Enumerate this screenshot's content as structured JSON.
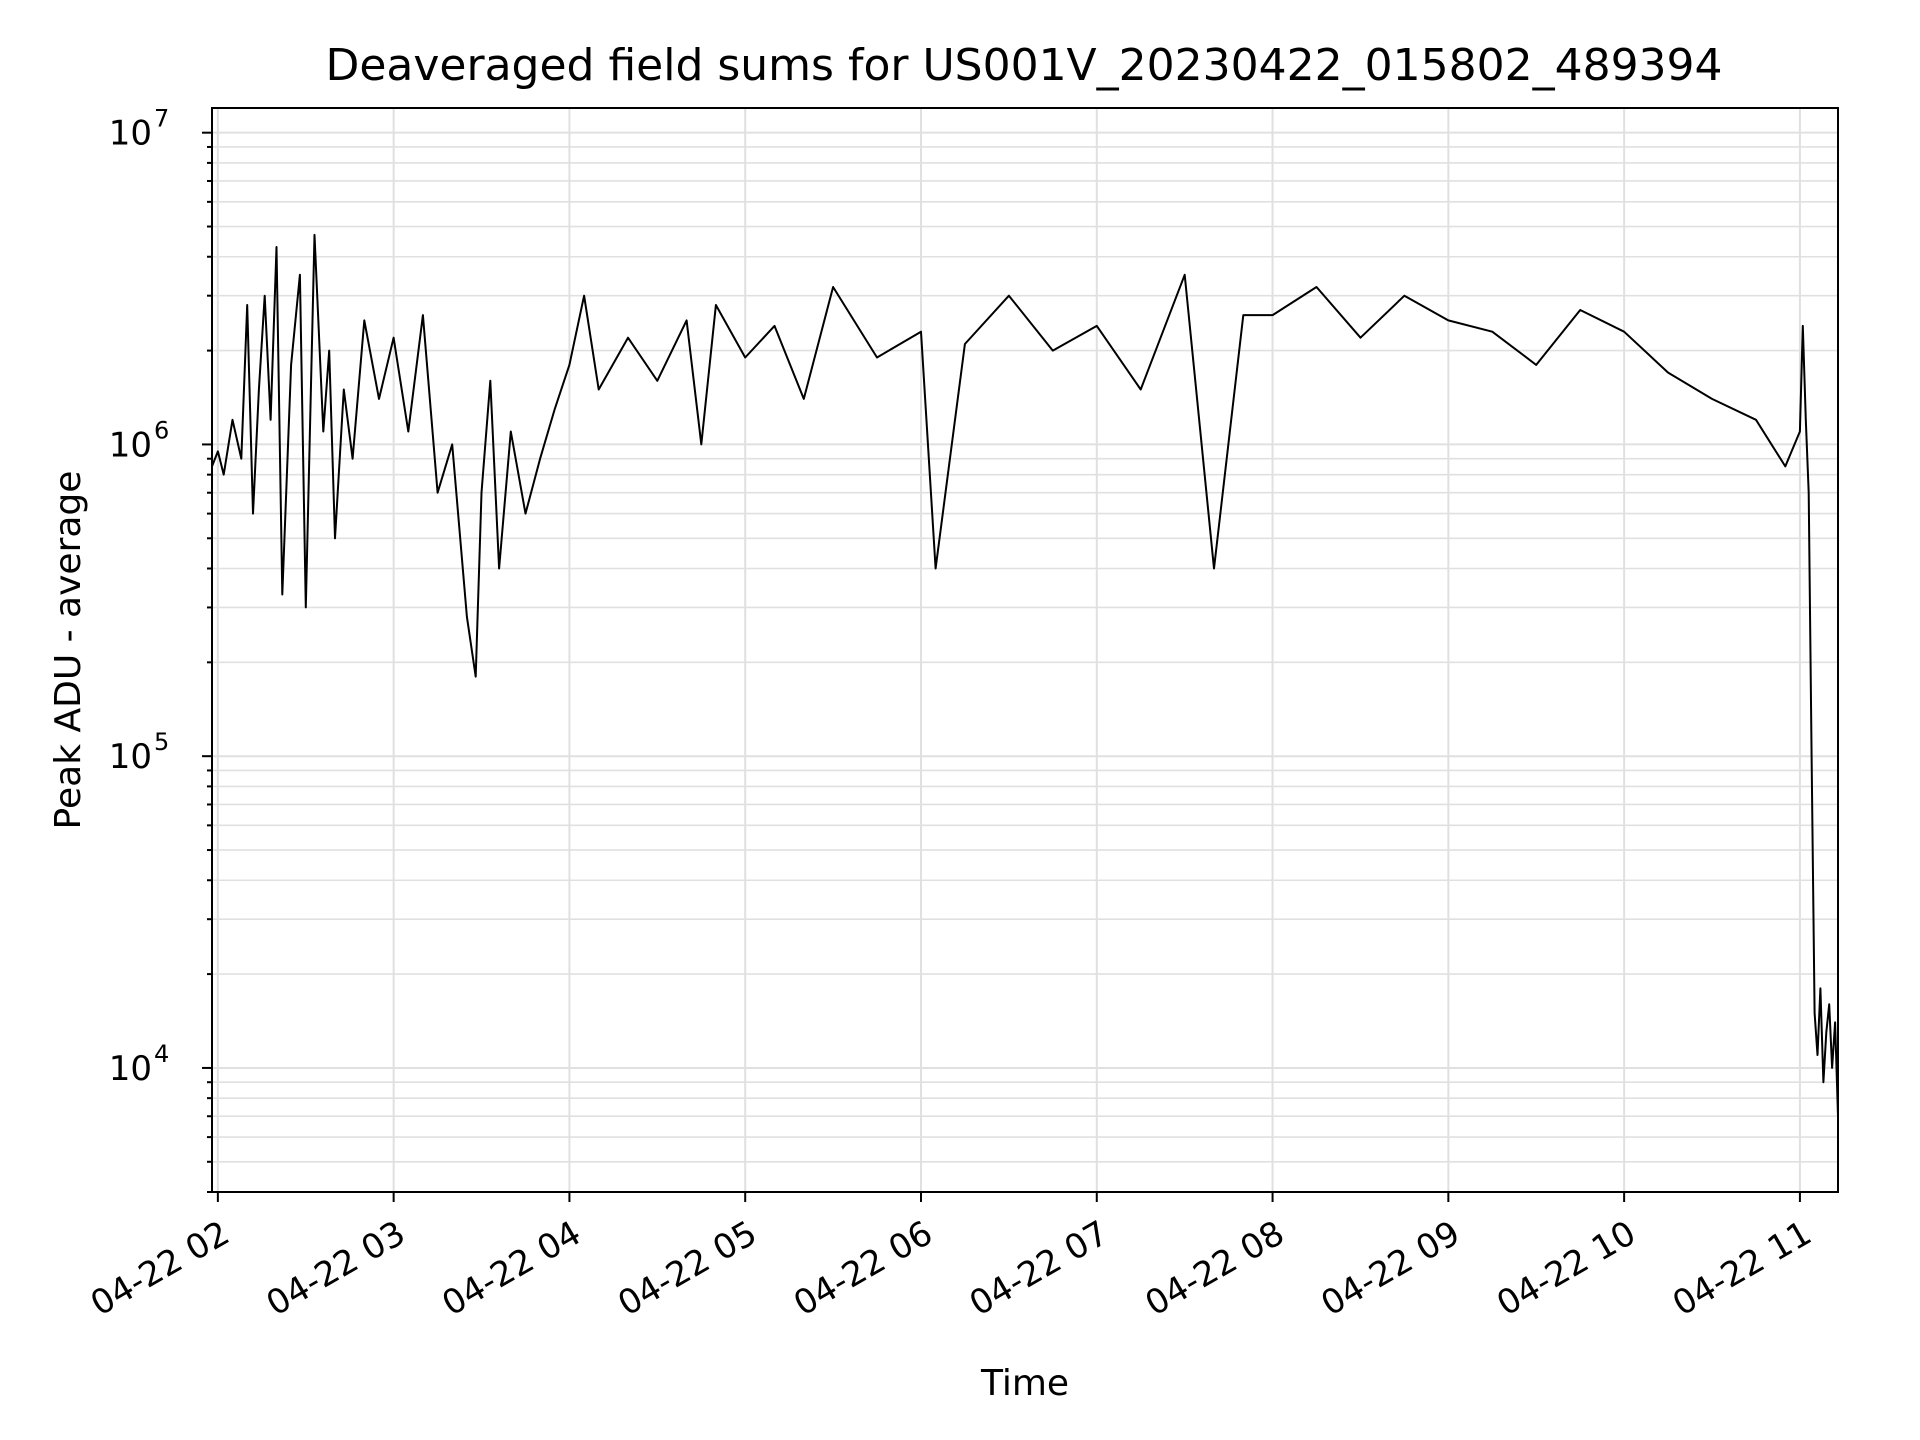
{
  "chart_data": {
    "type": "line",
    "title": "Deaveraged field sums for US001V_20230422_015802_489394",
    "xlabel": "Time",
    "ylabel": "Peak ADU - average",
    "y_scale": "log",
    "ylim": [
      4000,
      12000000
    ],
    "xlim": [
      "2023-04-22 01:58",
      "2023-04-22 11:13"
    ],
    "x_ticks": [
      "04-22 02",
      "04-22 03",
      "04-22 04",
      "04-22 05",
      "04-22 06",
      "04-22 07",
      "04-22 08",
      "04-22 09",
      "04-22 10",
      "04-22 11"
    ],
    "x_tick_times": [
      "2023-04-22 02:00",
      "2023-04-22 03:00",
      "2023-04-22 04:00",
      "2023-04-22 05:00",
      "2023-04-22 06:00",
      "2023-04-22 07:00",
      "2023-04-22 08:00",
      "2023-04-22 09:00",
      "2023-04-22 10:00",
      "2023-04-22 11:00"
    ],
    "y_ticks": [
      {
        "value": 10000,
        "base": "10",
        "exp": "4"
      },
      {
        "value": 100000,
        "base": "10",
        "exp": "5"
      },
      {
        "value": 1000000,
        "base": "10",
        "exp": "6"
      },
      {
        "value": 10000000,
        "base": "10",
        "exp": "7"
      }
    ],
    "grid": true,
    "line_color": "#000000",
    "grid_color": "#e0e0e0",
    "series": [
      {
        "x": [
          "2023-04-22 01:58",
          "2023-04-22 02:00",
          "2023-04-22 02:02",
          "2023-04-22 02:05",
          "2023-04-22 02:08",
          "2023-04-22 02:10",
          "2023-04-22 02:12",
          "2023-04-22 02:14",
          "2023-04-22 02:16",
          "2023-04-22 02:18",
          "2023-04-22 02:20",
          "2023-04-22 02:22",
          "2023-04-22 02:25",
          "2023-04-22 02:28",
          "2023-04-22 02:30",
          "2023-04-22 02:33",
          "2023-04-22 02:36",
          "2023-04-22 02:38",
          "2023-04-22 02:40",
          "2023-04-22 02:43",
          "2023-04-22 02:46",
          "2023-04-22 02:50",
          "2023-04-22 02:55",
          "2023-04-22 03:00",
          "2023-04-22 03:05",
          "2023-04-22 03:10",
          "2023-04-22 03:15",
          "2023-04-22 03:20",
          "2023-04-22 03:25",
          "2023-04-22 03:28",
          "2023-04-22 03:30",
          "2023-04-22 03:33",
          "2023-04-22 03:36",
          "2023-04-22 03:40",
          "2023-04-22 03:45",
          "2023-04-22 03:50",
          "2023-04-22 03:55",
          "2023-04-22 04:00",
          "2023-04-22 04:05",
          "2023-04-22 04:10",
          "2023-04-22 04:20",
          "2023-04-22 04:30",
          "2023-04-22 04:40",
          "2023-04-22 04:45",
          "2023-04-22 04:50",
          "2023-04-22 05:00",
          "2023-04-22 05:10",
          "2023-04-22 05:20",
          "2023-04-22 05:30",
          "2023-04-22 05:45",
          "2023-04-22 06:00",
          "2023-04-22 06:05",
          "2023-04-22 06:15",
          "2023-04-22 06:30",
          "2023-04-22 06:45",
          "2023-04-22 07:00",
          "2023-04-22 07:15",
          "2023-04-22 07:30",
          "2023-04-22 07:40",
          "2023-04-22 07:50",
          "2023-04-22 08:00",
          "2023-04-22 08:15",
          "2023-04-22 08:30",
          "2023-04-22 08:45",
          "2023-04-22 09:00",
          "2023-04-22 09:15",
          "2023-04-22 09:30",
          "2023-04-22 09:45",
          "2023-04-22 10:00",
          "2023-04-22 10:15",
          "2023-04-22 10:30",
          "2023-04-22 10:45",
          "2023-04-22 10:55",
          "2023-04-22 11:00",
          "2023-04-22 11:01",
          "2023-04-22 11:02",
          "2023-04-22 11:03",
          "2023-04-22 11:04",
          "2023-04-22 11:05",
          "2023-04-22 11:06",
          "2023-04-22 11:07",
          "2023-04-22 11:08",
          "2023-04-22 11:09",
          "2023-04-22 11:10",
          "2023-04-22 11:11",
          "2023-04-22 11:12",
          "2023-04-22 11:13"
        ],
        "y": [
          850000,
          950000,
          800000,
          1200000,
          900000,
          2800000,
          600000,
          1500000,
          3000000,
          1200000,
          4300000,
          330000,
          1800000,
          3500000,
          300000,
          4700000,
          1100000,
          2000000,
          500000,
          1500000,
          900000,
          2500000,
          1400000,
          2200000,
          1100000,
          2600000,
          700000,
          1000000,
          280000,
          180000,
          700000,
          1600000,
          400000,
          1100000,
          600000,
          900000,
          1300000,
          1800000,
          3000000,
          1500000,
          2200000,
          1600000,
          2500000,
          1000000,
          2800000,
          1900000,
          2400000,
          1400000,
          3200000,
          1900000,
          2300000,
          400000,
          2100000,
          3000000,
          2000000,
          2400000,
          1500000,
          3500000,
          400000,
          2600000,
          2600000,
          3200000,
          2200000,
          3000000,
          2500000,
          2300000,
          1800000,
          2700000,
          2300000,
          1700000,
          1400000,
          1200000,
          850000,
          1100000,
          2400000,
          1200000,
          700000,
          100000,
          15000,
          11000,
          18000,
          9000,
          13000,
          16000,
          10000,
          14000,
          7000
        ]
      }
    ]
  }
}
